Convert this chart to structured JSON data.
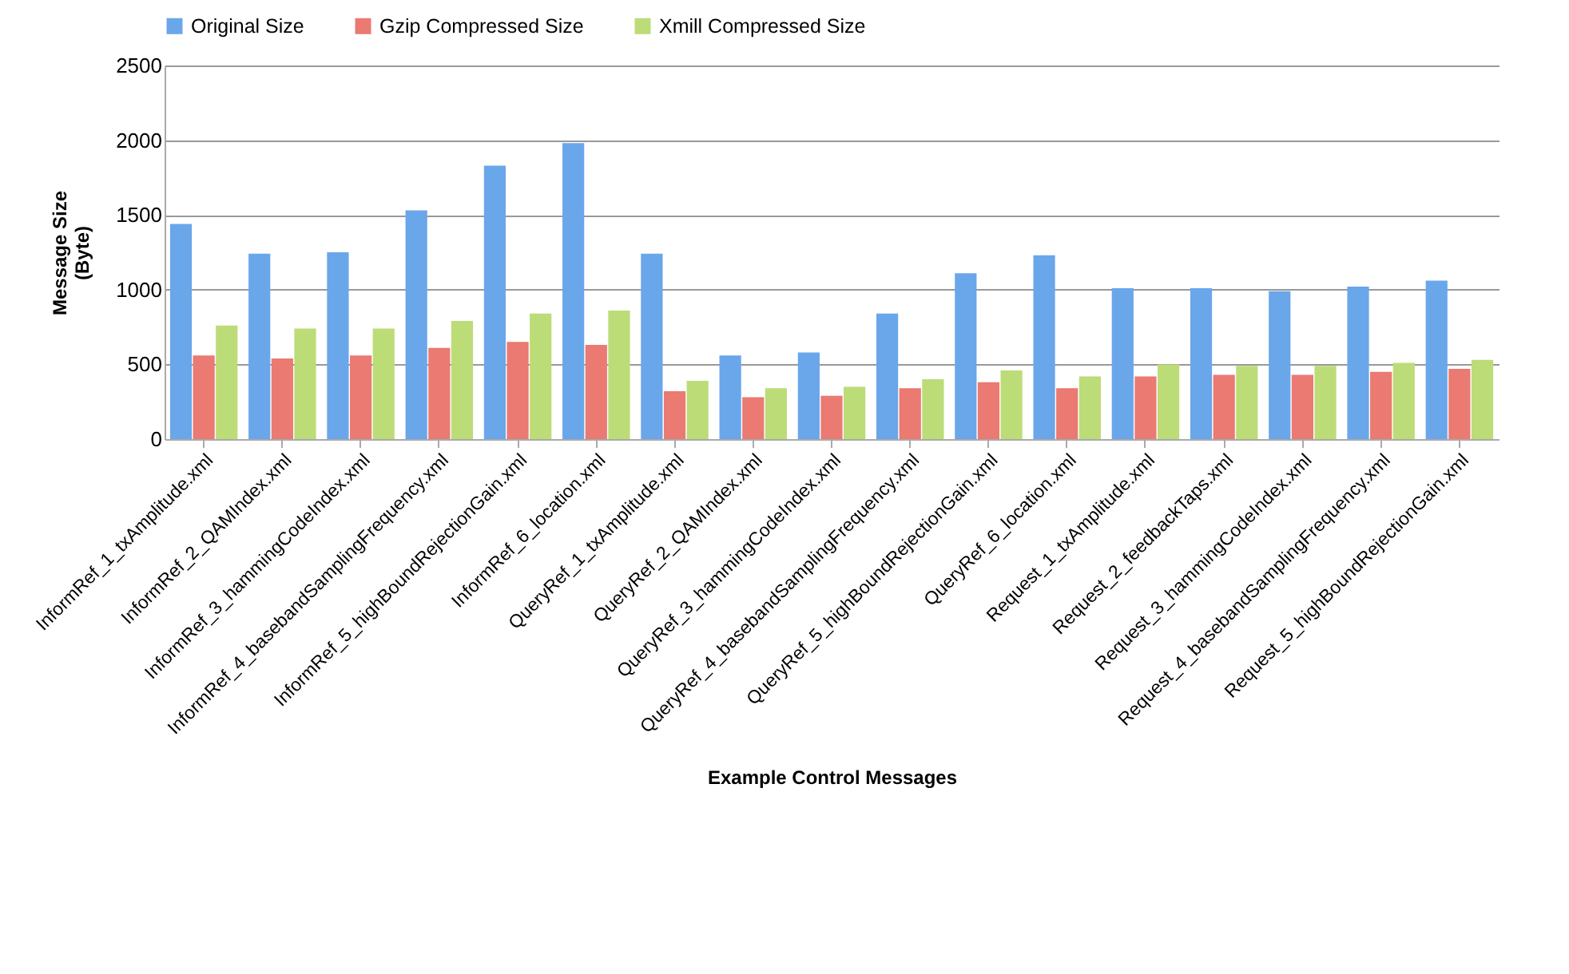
{
  "chart_data": {
    "type": "bar",
    "xlabel": "Example Control Messages",
    "ylabel": "Message Size (Byte)",
    "categories": [
      "InformRef_1_txAmplitude.xml",
      "InformRef_2_QAMIndex.xml",
      "InformRef_3_hammingCodeIndex.xml",
      "InformRef_4_basebandSamplingFrequency.xml",
      "InformRef_5_highBoundRejectionGain.xml",
      "InformRef_6_location.xml",
      "QueryRef_1_txAmplitude.xml",
      "QueryRef_2_QAMIndex.xml",
      "QueryRef_3_hammingCodeIndex.xml",
      "QueryRef_4_basebandSamplingFrequency.xml",
      "QueryRef_5_highBoundRejectionGain.xml",
      "QueryRef_6_location.xml",
      "Request_1_txAmplitude.xml",
      "Request_2_feedbackTaps.xml",
      "Request_3_hammingCodeIndex.xml",
      "Request_4_basebandSamplingFrequency.xml",
      "Request_5_highBoundRejectionGain.xml"
    ],
    "series": [
      {
        "name": "Original Size",
        "color": "#6aa6ea",
        "values": [
          1440,
          1240,
          1250,
          1530,
          1830,
          1980,
          1240,
          560,
          580,
          840,
          1110,
          1230,
          1010,
          1010,
          990,
          1020,
          1060
        ]
      },
      {
        "name": "Gzip Compressed Size",
        "color": "#ea7a72",
        "values": [
          560,
          540,
          560,
          610,
          650,
          630,
          320,
          280,
          290,
          340,
          380,
          340,
          420,
          430,
          430,
          450,
          470
        ]
      },
      {
        "name": "Xmill Compressed Size",
        "color": "#bcdc78",
        "values": [
          760,
          740,
          740,
          790,
          840,
          860,
          390,
          340,
          350,
          400,
          460,
          420,
          500,
          490,
          490,
          510,
          530
        ]
      }
    ],
    "ylim": [
      0,
      2500
    ],
    "yticks": [
      0,
      500,
      1000,
      1500,
      2000,
      2500
    ],
    "grid": "y",
    "legend": "top"
  }
}
